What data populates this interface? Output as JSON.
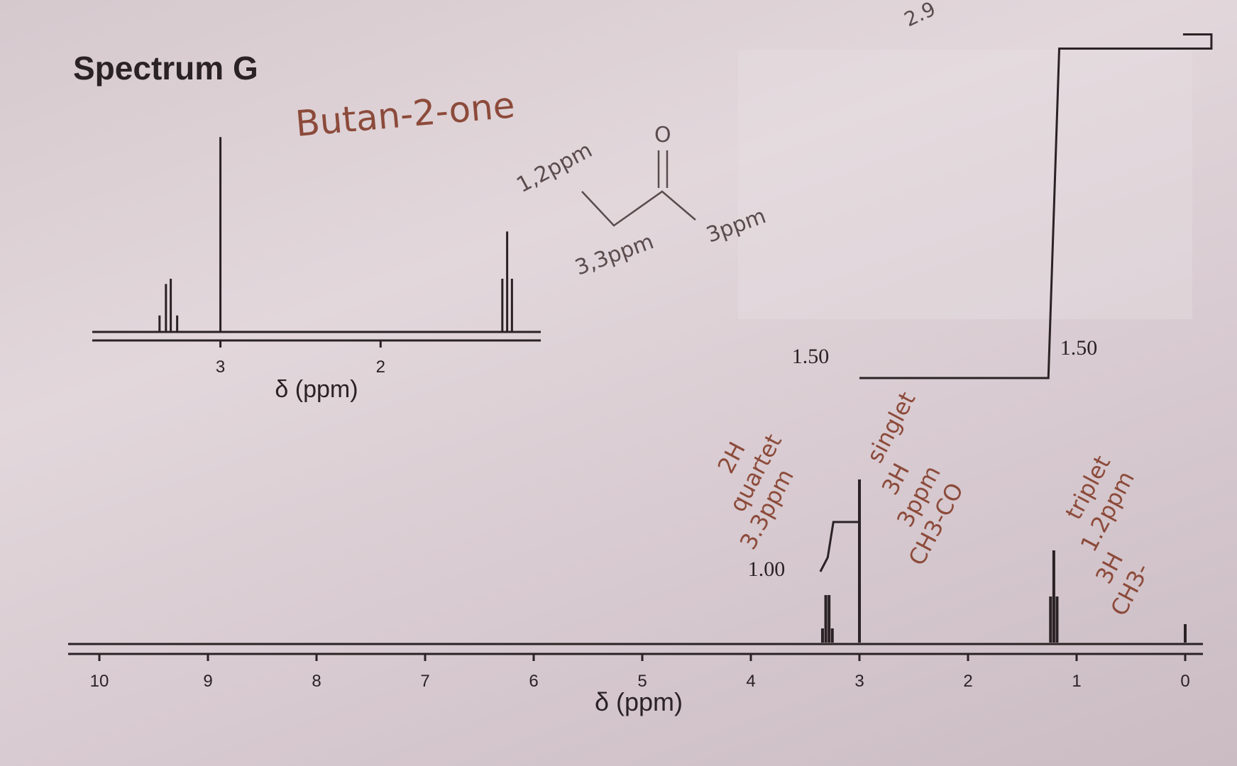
{
  "title": "Spectrum G",
  "annotations": {
    "compound_name": "Butan-2-one",
    "structure_labels": [
      "1,2ppm",
      "3,3ppm",
      "3ppm"
    ],
    "structure_carbonyl": "O",
    "top_corner": "2.9",
    "quartet_note": [
      "2H",
      "quartet",
      "3.3ppm"
    ],
    "singlet_note": [
      "singlet",
      "3H",
      "3ppm",
      "CH3-CO"
    ],
    "triplet_note": [
      "triplet",
      "1.2ppm",
      "3H",
      "CH3-"
    ]
  },
  "colors": {
    "ink": "#2a2224",
    "handwriting": "#8c4a3a",
    "pencil": "#5a4b4d"
  },
  "chart_data": [
    {
      "type": "line",
      "subtype": "nmr-spectrum",
      "xlabel": "δ (ppm)",
      "xlim": [
        10,
        0
      ],
      "xaxis_reversed": true,
      "xticks": [
        "10",
        "9",
        "8",
        "7",
        "6",
        "5",
        "4",
        "3",
        "2",
        "1",
        "0"
      ],
      "peaks": [
        {
          "shift": 3.3,
          "multiplicity": "quartet",
          "lines": [
            3.34,
            3.31,
            3.28,
            3.25
          ],
          "heights": [
            0.2,
            0.67,
            0.67,
            0.2
          ]
        },
        {
          "shift": 3.0,
          "multiplicity": "singlet",
          "lines": [
            3.0
          ],
          "heights": [
            2.3
          ]
        },
        {
          "shift": 1.2,
          "multiplicity": "triplet",
          "lines": [
            1.24,
            1.21,
            1.18
          ],
          "heights": [
            0.65,
            1.3,
            0.65
          ]
        },
        {
          "shift": 0.0,
          "multiplicity": "singlet",
          "lines": [
            0.0
          ],
          "heights": [
            0.26
          ]
        }
      ],
      "integrals": [
        {
          "label": "1.00",
          "shift": 3.3
        },
        {
          "label": "1.50",
          "shift": 3.0
        },
        {
          "label": "1.50",
          "shift": 1.2
        }
      ]
    },
    {
      "type": "line",
      "subtype": "nmr-expansion",
      "xlabel": "δ (ppm)",
      "xlim": [
        3.8,
        1.0
      ],
      "xaxis_reversed": true,
      "xticks": [
        "3",
        "2"
      ],
      "peaks": [
        {
          "shift": 3.3,
          "multiplicity": "quartet",
          "lines": [
            3.38,
            3.34,
            3.31,
            3.27
          ],
          "heights": [
            0.3,
            0.9,
            1.0,
            0.3
          ]
        },
        {
          "shift": 3.0,
          "multiplicity": "singlet",
          "lines": [
            3.0
          ],
          "heights": [
            3.7
          ]
        },
        {
          "shift": 1.2,
          "multiplicity": "triplet",
          "lines": [
            1.24,
            1.21,
            1.18
          ],
          "heights": [
            1.0,
            1.9,
            1.0
          ]
        }
      ]
    }
  ]
}
